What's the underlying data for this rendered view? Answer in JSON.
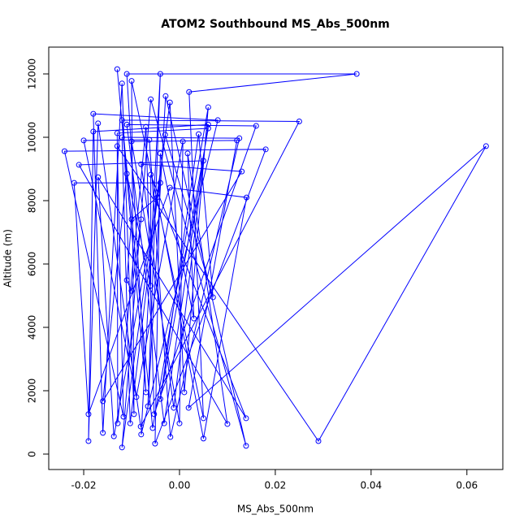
{
  "chart_data": {
    "type": "line",
    "title": "ATOM2 Southbound MS_Abs_500nm",
    "x_label": "MS_Abs_500nm",
    "y_label": "Altitude (m)",
    "color": "#0000ff",
    "markers": true,
    "x": [
      -0.013,
      -0.007,
      -0.011,
      0.037,
      0.002,
      0.005,
      -0.01,
      -0.0095,
      -0.012,
      -0.016,
      -0.018,
      0.008,
      -0.008,
      -0.004,
      -0.0066,
      -0.0029,
      0.0139,
      -0.006,
      -0.012,
      -0.002,
      0.001,
      0.006,
      -0.0056,
      -0.012,
      0.025,
      -0.0081,
      -0.017,
      -0.019,
      -0.018,
      0.006,
      -0.0032,
      -0.011,
      0.016,
      -0.0053,
      -0.007,
      -0.0129,
      -0.013,
      0.006,
      -0.004,
      0.004,
      0.007,
      -0.003,
      -0.0103,
      -0.012,
      0.0125,
      -0.0019,
      -0.0063,
      -0.02,
      -0.009,
      0.0007,
      0.0,
      -0.01,
      0.012,
      0.0019,
      0.064,
      0.029,
      -0.013,
      -0.0117,
      -0.024,
      0.018,
      -0.0051,
      -0.004,
      0.003,
      0.0017,
      0.01,
      -0.021,
      0.005,
      -0.0012,
      -0.008,
      0.013,
      -0.016,
      -0.011,
      -0.006,
      -0.006,
      0.0139,
      -0.017,
      -0.0137,
      -0.004,
      -0.022,
      -0.019,
      -0.002,
      0.014,
      0.005,
      -0.0047,
      -0.01,
      -0.011,
      -0.01,
      -0.008
    ],
    "values": [
      12150,
      1950,
      12000,
      12000,
      11430,
      1130,
      11780,
      1260,
      11700,
      670,
      10740,
      10540,
      620,
      12000,
      1510,
      11300,
      260,
      11200,
      210,
      11100,
      1950,
      10950,
      820,
      10540,
      10500,
      870,
      10440,
      410,
      10180,
      10400,
      970,
      10400,
      10360,
      1260,
      10330,
      970,
      10130,
      10280,
      1740,
      10100,
      4950,
      10080,
      970,
      10000,
      9970,
      540,
      9920,
      9900,
      1800,
      9870,
      970,
      9870,
      9900,
      1460,
      9720,
      410,
      9720,
      1180,
      9560,
      9620,
      330,
      9490,
      4280,
      9490,
      950,
      9130,
      9260,
      1460,
      9150,
      8920,
      1670,
      8850,
      5310,
      8820,
      1130,
      8740,
      560,
      8560,
      8560,
      1260,
      8410,
      8100,
      490,
      8100,
      7410,
      5490,
      5150,
      7410
    ],
    "xlim": [
      -0.0273,
      0.0675
    ],
    "ylim": [
      -487,
      12846
    ],
    "xticks": [
      -0.02,
      {
        "value": 0,
        "label": "0.00"
      },
      0.02,
      0.04,
      0.06
    ],
    "yticks": [
      0,
      2000,
      4000,
      6000,
      8000,
      10000,
      12000
    ]
  }
}
